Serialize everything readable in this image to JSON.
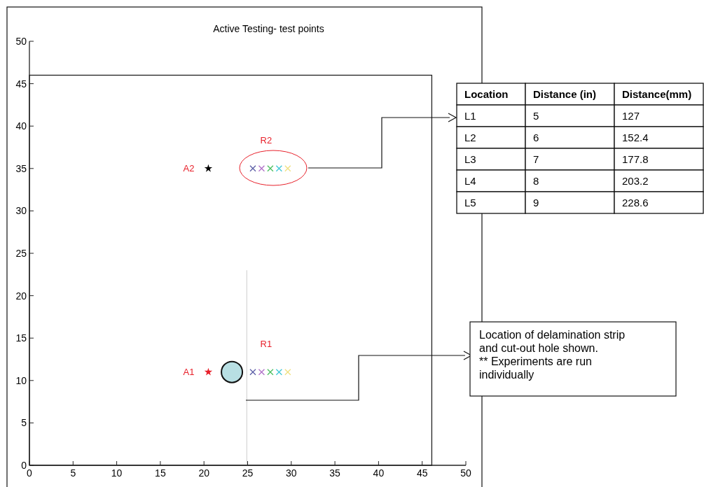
{
  "chart_data": {
    "type": "scatter",
    "title": "Active Testing- test points",
    "xlim": [
      0,
      50
    ],
    "ylim": [
      0,
      50
    ],
    "xticks": [
      0,
      5,
      10,
      15,
      20,
      25,
      30,
      35,
      40,
      45,
      50
    ],
    "yticks": [
      0,
      5,
      10,
      15,
      20,
      25,
      30,
      35,
      40,
      45,
      50
    ],
    "series": [
      {
        "name": "A1",
        "color": "#e8202a",
        "marker": "star",
        "x": [
          20.5
        ],
        "values": [
          11
        ]
      },
      {
        "name": "A2",
        "color": "#000000",
        "marker": "star",
        "x": [
          20.5
        ],
        "values": [
          35
        ]
      },
      {
        "color": "#5b5ea6",
        "marker": "cross",
        "x": [
          25.6,
          25.6
        ],
        "values": [
          11,
          35
        ]
      },
      {
        "color": "#b070c8",
        "marker": "cross",
        "x": [
          26.6,
          26.6
        ],
        "values": [
          11,
          35
        ]
      },
      {
        "color": "#4cc060",
        "marker": "cross",
        "x": [
          27.6,
          27.6
        ],
        "values": [
          11,
          35
        ]
      },
      {
        "color": "#40c8d8",
        "marker": "cross",
        "x": [
          28.6,
          28.6
        ],
        "values": [
          11,
          35
        ]
      },
      {
        "color": "#f0e080",
        "marker": "cross",
        "x": [
          29.6,
          29.6
        ],
        "values": [
          11,
          35
        ]
      }
    ],
    "annotations": [
      {
        "text": "R1",
        "x": 27.6,
        "y": 11
      },
      {
        "text": "R2",
        "x": 27.6,
        "y": 35
      },
      "Location of delamination strip and cut-out hole shown. ** Experiments are run individually",
      "Location",
      "Distance (in)",
      "Distance(mm)",
      "L1",
      "5",
      "127",
      "L2",
      "6",
      "152.4",
      "L3",
      "7",
      "177.8",
      "L4",
      "8",
      "203.2",
      "L5",
      "9",
      "228.6"
    ]
  }
}
